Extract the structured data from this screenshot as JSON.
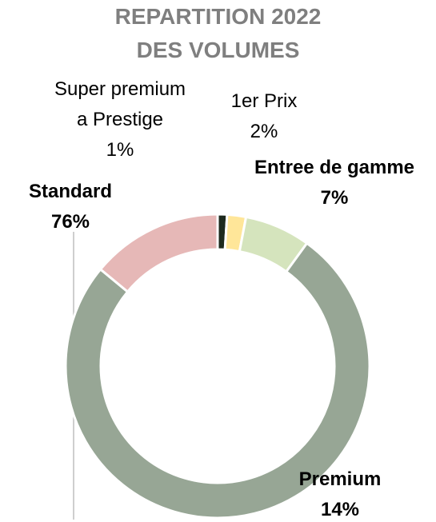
{
  "chart_data": {
    "type": "donut",
    "title": "REPARTITION 2022\nDES VOLUMES",
    "categories": [
      "Super premium\na Prestige",
      "1er Prix",
      "Entree de gamme",
      "Standard",
      "Premium"
    ],
    "values": [
      1,
      2,
      7,
      76,
      14
    ],
    "value_labels": [
      "1%",
      "2%",
      "7%",
      "76%",
      "14%"
    ],
    "colors": [
      "#1e2a1e",
      "#ffe699",
      "#d5e4bd",
      "#97a695",
      "#e6b8b7"
    ]
  }
}
